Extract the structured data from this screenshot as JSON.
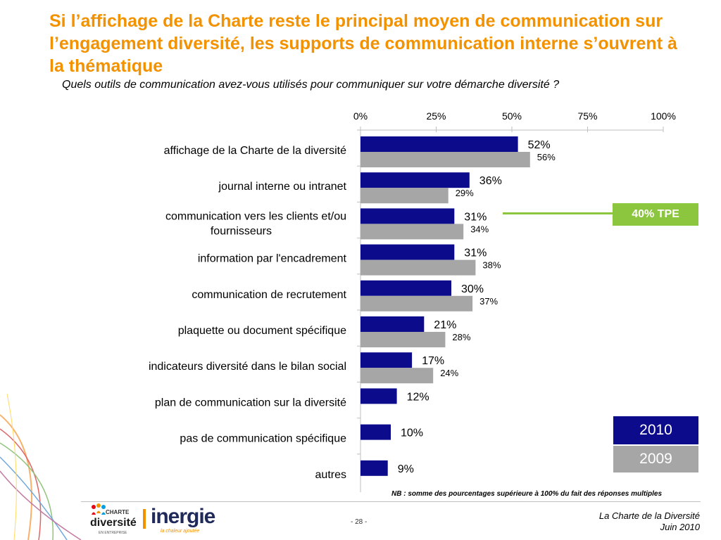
{
  "title": "Si l’affichage de la Charte reste le principal moyen de communication sur l’engagement diversité, les supports de communication interne s’ouvrent à la thématique",
  "subtitle": "Quels outils de communication avez-vous utilisés pour communiquer sur votre démarche diversité ?",
  "chart_data": {
    "type": "bar",
    "orientation": "horizontal",
    "xlim": [
      0,
      100
    ],
    "ticks": [
      "0%",
      "25%",
      "50%",
      "75%",
      "100%"
    ],
    "categories": [
      "affichage de la Charte de la diversité",
      "journal interne ou intranet",
      "communication vers les clients et/ou fournisseurs",
      "information par l'encadrement",
      "communication de recrutement",
      "plaquette ou document spécifique",
      "indicateurs diversité dans le bilan social",
      "plan de communication sur la diversité",
      "pas de communication spécifique",
      "autres"
    ],
    "series": [
      {
        "name": "2010",
        "color": "#0b0b8c",
        "values": [
          52,
          36,
          31,
          31,
          30,
          21,
          17,
          12,
          10,
          9
        ]
      },
      {
        "name": "2009",
        "color": "#a6a6a6",
        "values": [
          56,
          29,
          34,
          38,
          37,
          28,
          24,
          null,
          null,
          null
        ]
      }
    ],
    "legend": "bottom-right"
  },
  "callout": {
    "label": "40% TPE",
    "color": "#8cc63f"
  },
  "legend": {
    "y2010": "2010",
    "y2009": "2009"
  },
  "note": "NB : somme des pourcentages supérieure à 100% du fait des réponses multiples",
  "footer": {
    "page": "- 28 -",
    "org": "La Charte de la Diversité",
    "date": "Juin 2010",
    "logo_charte_top": "CHARTE",
    "logo_charte_main": "diversité",
    "logo_charte_sub": "EN ENTREPRISE",
    "logo_inergie": "inergie",
    "logo_inergie_tagline": "la chaleur ajoutée"
  },
  "colors": {
    "accent": "#f39200",
    "series2010": "#0b0b8c",
    "series2009": "#a6a6a6",
    "tpe": "#8cc63f"
  }
}
